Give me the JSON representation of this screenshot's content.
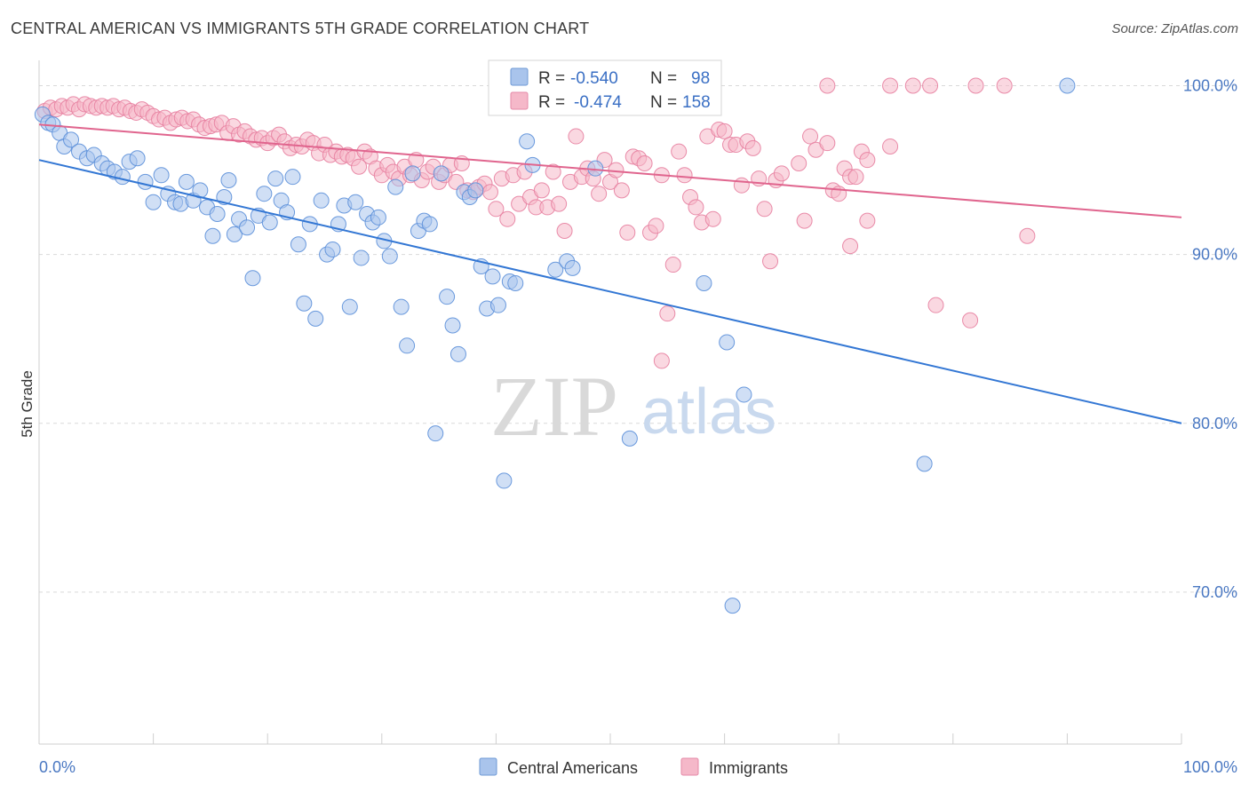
{
  "header": {
    "title": "CENTRAL AMERICAN VS IMMIGRANTS 5TH GRADE CORRELATION CHART",
    "source": "Source: ZipAtlas.com"
  },
  "watermark": {
    "zip": "ZIP",
    "atlas": "atlas"
  },
  "legend": {
    "rows": [
      {
        "r_label": "R =",
        "r_value": "-0.540",
        "n_label": "N =",
        "n_value": "98",
        "color": "#a9c4ec"
      },
      {
        "r_label": "R =",
        "r_value": "-0.474",
        "n_label": "N =",
        "n_value": "158",
        "color": "#f5b8c9"
      }
    ]
  },
  "bottom_legend": {
    "items": [
      {
        "label": "Central Americans",
        "color": "#a9c4ec"
      },
      {
        "label": "Immigrants",
        "color": "#f5b8c9"
      }
    ]
  },
  "chart_data": {
    "type": "scatter",
    "title": "CENTRAL AMERICAN VS IMMIGRANTS 5TH GRADE CORRELATION CHART",
    "xlabel": "",
    "ylabel": "5th Grade",
    "xlim": [
      0,
      100
    ],
    "ylim": [
      61,
      101.5
    ],
    "x_tick_labels": [
      {
        "value": 0,
        "label": "0.0%"
      },
      {
        "value": 100,
        "label": "100.0%"
      }
    ],
    "y_tick_labels": [
      {
        "value": 100,
        "label": "100.0%"
      },
      {
        "value": 90,
        "label": "90.0%"
      },
      {
        "value": 80,
        "label": "80.0%"
      },
      {
        "value": 70,
        "label": "70.0%"
      }
    ],
    "grid": true,
    "legend_position": "top-center",
    "series": [
      {
        "name": "Central Americans",
        "color": "#5b8fd9",
        "fill": "#a9c4ec",
        "trend": {
          "x": [
            0,
            100
          ],
          "y": [
            95.6,
            80.0
          ],
          "color": "#3377d4"
        },
        "points": [
          [
            0.3,
            98.3
          ],
          [
            0.8,
            97.8
          ],
          [
            1.2,
            97.7
          ],
          [
            1.8,
            97.2
          ],
          [
            2.2,
            96.4
          ],
          [
            2.8,
            96.8
          ],
          [
            3.5,
            96.1
          ],
          [
            4.2,
            95.7
          ],
          [
            4.8,
            95.9
          ],
          [
            5.5,
            95.4
          ],
          [
            6.0,
            95.1
          ],
          [
            6.6,
            94.9
          ],
          [
            7.3,
            94.6
          ],
          [
            7.9,
            95.5
          ],
          [
            8.6,
            95.7
          ],
          [
            9.3,
            94.3
          ],
          [
            10.0,
            93.1
          ],
          [
            10.7,
            94.7
          ],
          [
            11.3,
            93.6
          ],
          [
            11.9,
            93.1
          ],
          [
            12.4,
            93.0
          ],
          [
            12.9,
            94.3
          ],
          [
            13.5,
            93.2
          ],
          [
            14.1,
            93.8
          ],
          [
            14.7,
            92.8
          ],
          [
            15.2,
            91.1
          ],
          [
            15.6,
            92.4
          ],
          [
            16.2,
            93.4
          ],
          [
            16.6,
            94.4
          ],
          [
            17.1,
            91.2
          ],
          [
            17.5,
            92.1
          ],
          [
            18.2,
            91.6
          ],
          [
            18.7,
            88.6
          ],
          [
            19.2,
            92.3
          ],
          [
            19.7,
            93.6
          ],
          [
            20.2,
            91.9
          ],
          [
            20.7,
            94.5
          ],
          [
            21.2,
            93.2
          ],
          [
            21.7,
            92.5
          ],
          [
            22.2,
            94.6
          ],
          [
            22.7,
            90.6
          ],
          [
            23.2,
            87.1
          ],
          [
            23.7,
            91.8
          ],
          [
            24.2,
            86.2
          ],
          [
            24.7,
            93.2
          ],
          [
            25.2,
            90.0
          ],
          [
            25.7,
            90.3
          ],
          [
            26.2,
            91.8
          ],
          [
            26.7,
            92.9
          ],
          [
            27.2,
            86.9
          ],
          [
            27.7,
            93.1
          ],
          [
            28.2,
            89.8
          ],
          [
            28.7,
            92.4
          ],
          [
            29.2,
            91.9
          ],
          [
            29.7,
            92.2
          ],
          [
            30.2,
            90.8
          ],
          [
            30.7,
            89.9
          ],
          [
            31.2,
            94.0
          ],
          [
            31.7,
            86.9
          ],
          [
            32.2,
            84.6
          ],
          [
            32.7,
            94.8
          ],
          [
            33.2,
            91.4
          ],
          [
            33.7,
            92.0
          ],
          [
            34.2,
            91.8
          ],
          [
            34.7,
            79.4
          ],
          [
            35.2,
            94.8
          ],
          [
            35.7,
            87.5
          ],
          [
            36.2,
            85.8
          ],
          [
            36.7,
            84.1
          ],
          [
            37.2,
            93.7
          ],
          [
            37.7,
            93.4
          ],
          [
            38.2,
            93.8
          ],
          [
            38.7,
            89.3
          ],
          [
            39.2,
            86.8
          ],
          [
            39.7,
            88.7
          ],
          [
            40.2,
            87.0
          ],
          [
            40.7,
            76.6
          ],
          [
            41.2,
            88.4
          ],
          [
            41.7,
            88.3
          ],
          [
            42.7,
            96.7
          ],
          [
            43.2,
            95.3
          ],
          [
            45.2,
            89.1
          ],
          [
            46.2,
            89.6
          ],
          [
            46.7,
            89.2
          ],
          [
            48.7,
            95.1
          ],
          [
            51.7,
            79.1
          ],
          [
            58.2,
            88.3
          ],
          [
            60.2,
            84.8
          ],
          [
            60.7,
            69.2
          ],
          [
            61.7,
            81.7
          ],
          [
            77.5,
            77.6
          ],
          [
            90.0,
            100.0
          ]
        ]
      },
      {
        "name": "Immigrants",
        "color": "#e77fa0",
        "fill": "#f5b8c9",
        "trend": {
          "x": [
            0,
            100
          ],
          "y": [
            97.7,
            92.2
          ],
          "color": "#e0658e"
        },
        "points": [
          [
            0.5,
            98.5
          ],
          [
            1.0,
            98.7
          ],
          [
            1.5,
            98.6
          ],
          [
            2.0,
            98.8
          ],
          [
            2.5,
            98.7
          ],
          [
            3.0,
            98.9
          ],
          [
            3.5,
            98.6
          ],
          [
            4.0,
            98.9
          ],
          [
            4.5,
            98.8
          ],
          [
            5.0,
            98.7
          ],
          [
            5.5,
            98.8
          ],
          [
            6.0,
            98.7
          ],
          [
            6.5,
            98.8
          ],
          [
            7.0,
            98.6
          ],
          [
            7.5,
            98.7
          ],
          [
            8.0,
            98.5
          ],
          [
            8.5,
            98.4
          ],
          [
            9.0,
            98.6
          ],
          [
            9.5,
            98.4
          ],
          [
            10.0,
            98.2
          ],
          [
            10.5,
            98.0
          ],
          [
            11.0,
            98.1
          ],
          [
            11.5,
            97.8
          ],
          [
            12.0,
            98.0
          ],
          [
            12.5,
            98.1
          ],
          [
            13.0,
            97.9
          ],
          [
            13.5,
            98.0
          ],
          [
            14.0,
            97.7
          ],
          [
            14.5,
            97.5
          ],
          [
            15.0,
            97.6
          ],
          [
            15.5,
            97.7
          ],
          [
            16.0,
            97.8
          ],
          [
            16.5,
            97.2
          ],
          [
            17.0,
            97.6
          ],
          [
            17.5,
            97.1
          ],
          [
            18.0,
            97.3
          ],
          [
            18.5,
            97.0
          ],
          [
            19.0,
            96.8
          ],
          [
            19.5,
            96.9
          ],
          [
            20.0,
            96.6
          ],
          [
            20.5,
            96.9
          ],
          [
            21.0,
            97.1
          ],
          [
            21.5,
            96.7
          ],
          [
            22.0,
            96.3
          ],
          [
            22.5,
            96.5
          ],
          [
            23.0,
            96.4
          ],
          [
            23.5,
            96.8
          ],
          [
            24.0,
            96.6
          ],
          [
            24.5,
            96.0
          ],
          [
            25.0,
            96.5
          ],
          [
            25.5,
            95.9
          ],
          [
            26.0,
            96.1
          ],
          [
            26.5,
            95.8
          ],
          [
            27.0,
            95.9
          ],
          [
            27.5,
            95.7
          ],
          [
            28.0,
            95.2
          ],
          [
            28.5,
            96.1
          ],
          [
            29.0,
            95.8
          ],
          [
            29.5,
            95.1
          ],
          [
            30.0,
            94.7
          ],
          [
            30.5,
            95.3
          ],
          [
            31.0,
            94.9
          ],
          [
            31.5,
            94.5
          ],
          [
            32.0,
            95.2
          ],
          [
            32.5,
            94.7
          ],
          [
            33.0,
            95.6
          ],
          [
            33.5,
            94.4
          ],
          [
            34.0,
            94.9
          ],
          [
            34.5,
            95.2
          ],
          [
            35.0,
            94.3
          ],
          [
            35.5,
            94.7
          ],
          [
            36.0,
            95.3
          ],
          [
            36.5,
            94.3
          ],
          [
            37.0,
            95.4
          ],
          [
            37.5,
            93.8
          ],
          [
            38.0,
            93.7
          ],
          [
            38.5,
            94.0
          ],
          [
            39.0,
            94.2
          ],
          [
            39.5,
            93.7
          ],
          [
            40.0,
            92.7
          ],
          [
            40.5,
            94.5
          ],
          [
            41.0,
            92.1
          ],
          [
            41.5,
            94.7
          ],
          [
            42.0,
            93.0
          ],
          [
            42.5,
            94.9
          ],
          [
            43.0,
            93.4
          ],
          [
            43.5,
            92.8
          ],
          [
            44.0,
            93.8
          ],
          [
            44.5,
            92.8
          ],
          [
            45.0,
            94.9
          ],
          [
            45.5,
            93.0
          ],
          [
            46.0,
            91.4
          ],
          [
            46.5,
            94.3
          ],
          [
            47.0,
            97.0
          ],
          [
            47.5,
            94.6
          ],
          [
            48.0,
            95.1
          ],
          [
            48.5,
            94.5
          ],
          [
            49.0,
            93.6
          ],
          [
            49.5,
            95.6
          ],
          [
            50.0,
            94.3
          ],
          [
            50.5,
            95.0
          ],
          [
            51.0,
            93.8
          ],
          [
            51.5,
            91.3
          ],
          [
            52.0,
            95.8
          ],
          [
            52.5,
            95.7
          ],
          [
            53.0,
            95.4
          ],
          [
            53.5,
            91.3
          ],
          [
            54.0,
            91.7
          ],
          [
            54.5,
            94.7
          ],
          [
            55.0,
            86.5
          ],
          [
            55.5,
            89.4
          ],
          [
            56.0,
            96.1
          ],
          [
            56.5,
            94.7
          ],
          [
            57.0,
            93.4
          ],
          [
            57.5,
            92.8
          ],
          [
            58.0,
            91.9
          ],
          [
            58.5,
            97.0
          ],
          [
            59.0,
            92.1
          ],
          [
            59.5,
            97.4
          ],
          [
            60.0,
            97.3
          ],
          [
            60.5,
            96.5
          ],
          [
            61.0,
            96.5
          ],
          [
            61.5,
            94.1
          ],
          [
            62.0,
            96.7
          ],
          [
            62.5,
            96.3
          ],
          [
            63.0,
            94.5
          ],
          [
            63.5,
            92.7
          ],
          [
            64.0,
            89.6
          ],
          [
            64.5,
            94.4
          ],
          [
            65.0,
            94.8
          ],
          [
            66.5,
            95.4
          ],
          [
            67.0,
            92.0
          ],
          [
            67.5,
            97.0
          ],
          [
            68.0,
            96.2
          ],
          [
            69.0,
            96.6
          ],
          [
            69.5,
            93.8
          ],
          [
            70.0,
            93.6
          ],
          [
            70.5,
            95.1
          ],
          [
            71.0,
            94.6
          ],
          [
            71.5,
            94.6
          ],
          [
            72.0,
            96.1
          ],
          [
            72.5,
            95.6
          ],
          [
            54.5,
            83.7
          ],
          [
            69.0,
            100.0
          ],
          [
            74.5,
            100.0
          ],
          [
            76.5,
            100.0
          ],
          [
            78.0,
            100.0
          ],
          [
            82.0,
            100.0
          ],
          [
            84.5,
            100.0
          ],
          [
            78.5,
            87.0
          ],
          [
            81.5,
            86.1
          ],
          [
            86.5,
            91.1
          ],
          [
            71.0,
            90.5
          ],
          [
            72.5,
            92.0
          ],
          [
            74.5,
            96.4
          ]
        ]
      }
    ]
  }
}
